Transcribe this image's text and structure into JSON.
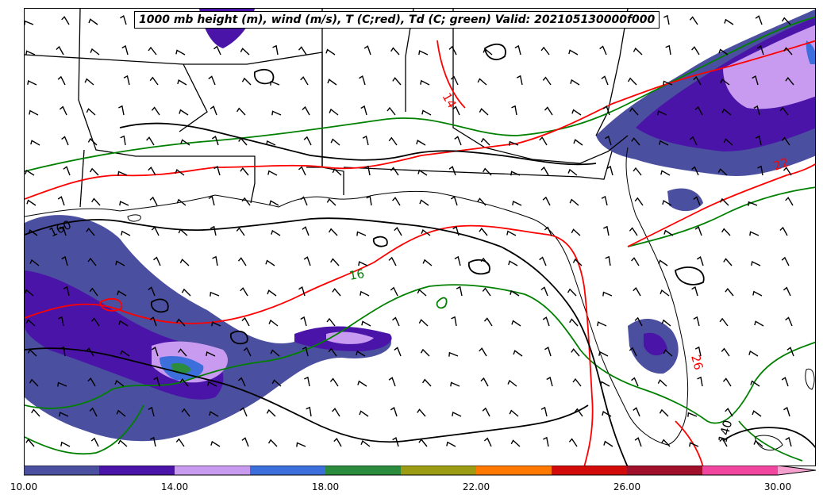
{
  "title": "1000 mb height (m), wind (m/s), T (C;red), Td (C; green) Valid: 202105130000f000",
  "contour_colors": {
    "height": "#000000",
    "temperature": "#ff0000",
    "dewpoint": "#008000"
  },
  "contour_labels": {
    "height": [
      "160",
      "140"
    ],
    "temperature": [
      "14",
      "22",
      "26"
    ],
    "dewpoint": [
      "16"
    ]
  },
  "colorbar": {
    "colors": [
      "#4b4f9f",
      "#4b14a8",
      "#c89bf0",
      "#3c6edc",
      "#2a8c3c",
      "#9c9c14",
      "#ff7800",
      "#d20a0a",
      "#a0102a",
      "#f046a0",
      "#f6a0d0"
    ],
    "tick_labels": [
      "10.00",
      "14.00",
      "18.00",
      "22.00",
      "26.00",
      "30.00"
    ],
    "tick_values": [
      10,
      14,
      18,
      22,
      26,
      30
    ],
    "range": [
      10,
      31
    ],
    "extend": "max"
  }
}
